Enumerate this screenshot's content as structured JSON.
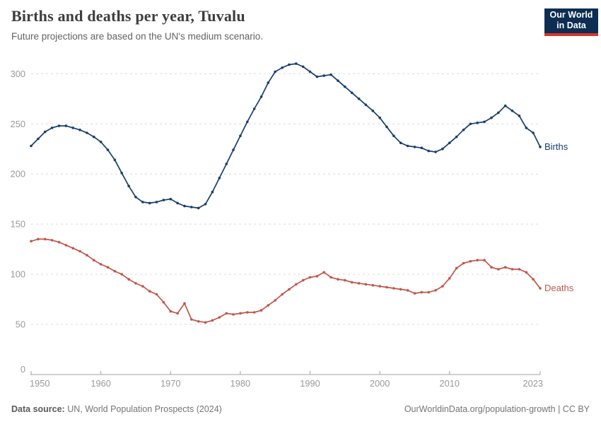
{
  "header": {
    "title": "Births and deaths per year, Tuvalu",
    "subtitle": "Future projections are based on the UN's medium scenario."
  },
  "logo": {
    "line1": "Our World",
    "line2": "in Data"
  },
  "footer": {
    "source_label": "Data source:",
    "source_text": " UN, World Population Prospects (2024)",
    "credit": "OurWorldinData.org/population-growth | CC BY"
  },
  "chart_data": {
    "type": "line",
    "title": "Births and deaths per year, Tuvalu",
    "xlabel": "",
    "ylabel": "",
    "ylim": [
      0,
      300
    ],
    "yticks": [
      0,
      50,
      100,
      150,
      200,
      250,
      300
    ],
    "xticks": [
      1950,
      1960,
      1970,
      1980,
      1990,
      2000,
      2010,
      2023
    ],
    "grid": "horizontal-dashed",
    "legend": "line-end-labels",
    "x": [
      1950,
      1951,
      1952,
      1953,
      1954,
      1955,
      1956,
      1957,
      1958,
      1959,
      1960,
      1961,
      1962,
      1963,
      1964,
      1965,
      1966,
      1967,
      1968,
      1969,
      1970,
      1971,
      1972,
      1973,
      1974,
      1975,
      1976,
      1977,
      1978,
      1979,
      1980,
      1981,
      1982,
      1983,
      1984,
      1985,
      1986,
      1987,
      1988,
      1989,
      1990,
      1991,
      1992,
      1993,
      1994,
      1995,
      1996,
      1997,
      1998,
      1999,
      2000,
      2001,
      2002,
      2003,
      2004,
      2005,
      2006,
      2007,
      2008,
      2009,
      2010,
      2011,
      2012,
      2013,
      2014,
      2015,
      2016,
      2017,
      2018,
      2019,
      2020,
      2021,
      2022,
      2023
    ],
    "series": [
      {
        "name": "Births",
        "color": "#173E6C",
        "values": [
          228,
          235,
          242,
          246,
          248,
          248,
          246,
          244,
          241,
          237,
          232,
          224,
          214,
          201,
          188,
          177,
          172,
          171,
          172,
          174,
          175,
          171,
          168,
          167,
          166,
          170,
          182,
          196,
          210,
          224,
          238,
          252,
          265,
          277,
          291,
          302,
          306,
          309,
          310,
          307,
          302,
          297,
          298,
          299,
          293,
          287,
          281,
          275,
          269,
          263,
          256,
          247,
          238,
          231,
          228,
          227,
          226,
          223,
          222,
          225,
          231,
          237,
          244,
          250,
          251,
          252,
          256,
          261,
          268,
          263,
          258,
          246,
          241,
          227
        ]
      },
      {
        "name": "Deaths",
        "color": "#C1564B",
        "values": [
          133,
          135,
          135,
          134,
          132,
          129,
          126,
          123,
          119,
          114,
          110,
          107,
          103,
          100,
          95,
          91,
          88,
          83,
          80,
          72,
          63,
          61,
          71,
          55,
          53,
          52,
          54,
          57,
          61,
          60,
          61,
          62,
          62,
          64,
          69,
          74,
          80,
          85,
          90,
          94,
          97,
          98,
          102,
          97,
          95,
          94,
          92,
          91,
          90,
          89,
          88,
          87,
          86,
          85,
          84,
          81,
          82,
          82,
          84,
          88,
          96,
          106,
          111,
          113,
          114,
          114,
          107,
          105,
          107,
          105,
          105,
          102,
          95,
          86
        ]
      }
    ]
  }
}
